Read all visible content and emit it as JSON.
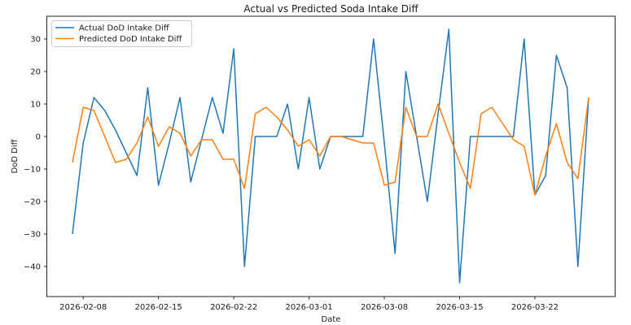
{
  "chart_data": {
    "type": "line",
    "title": "Actual vs Predicted Soda Intake Diff",
    "xlabel": "Date",
    "ylabel": "DoD Diff",
    "grid": false,
    "legend_position": "upper left",
    "background": "#ffffff",
    "ylim": [
      -49,
      37
    ],
    "yticks": [
      30,
      20,
      10,
      0,
      -10,
      -20,
      -30,
      -40
    ],
    "xticks": [
      "2026-02-08",
      "2026-02-15",
      "2026-02-22",
      "2026-03-01",
      "2026-03-08",
      "2026-03-15",
      "2026-03-22"
    ],
    "x": [
      "2026-02-07",
      "2026-02-08",
      "2026-02-09",
      "2026-02-10",
      "2026-02-11",
      "2026-02-12",
      "2026-02-13",
      "2026-02-14",
      "2026-02-15",
      "2026-02-16",
      "2026-02-17",
      "2026-02-18",
      "2026-02-19",
      "2026-02-20",
      "2026-02-21",
      "2026-02-22",
      "2026-02-23",
      "2026-02-24",
      "2026-02-25",
      "2026-02-26",
      "2026-02-27",
      "2026-02-28",
      "2026-03-01",
      "2026-03-02",
      "2026-03-03",
      "2026-03-04",
      "2026-03-05",
      "2026-03-06",
      "2026-03-07",
      "2026-03-08",
      "2026-03-09",
      "2026-03-10",
      "2026-03-11",
      "2026-03-12",
      "2026-03-13",
      "2026-03-14",
      "2026-03-15",
      "2026-03-16",
      "2026-03-17",
      "2026-03-18",
      "2026-03-19",
      "2026-03-20",
      "2026-03-21",
      "2026-03-22",
      "2026-03-23",
      "2026-03-24",
      "2026-03-25",
      "2026-03-26",
      "2026-03-27"
    ],
    "series": [
      {
        "name": "Actual DoD Intake Diff",
        "color": "#1f77b4",
        "values": [
          -30,
          -2,
          12,
          8,
          2,
          -5,
          -12,
          15,
          -15,
          -2,
          12,
          -14,
          -1,
          12,
          1,
          27,
          -40,
          0,
          0,
          0,
          10,
          -10,
          12,
          -10,
          0,
          0,
          0,
          0,
          30,
          -2,
          -36,
          20,
          0,
          -20,
          7,
          33,
          -45,
          0,
          0,
          0,
          0,
          0,
          30,
          -18,
          -12,
          25,
          15,
          -40,
          12
        ]
      },
      {
        "name": "Predicted DoD Intake Diff",
        "color": "#ff7f0e",
        "values": [
          -8,
          9,
          8,
          0,
          -8,
          -7,
          -2,
          6,
          -3,
          3,
          1,
          -6,
          -1,
          -1,
          -7,
          -7,
          -16,
          7,
          9,
          6,
          2,
          -3,
          -1,
          -6,
          0,
          0,
          -1,
          -2,
          -2,
          -15,
          -14,
          9,
          0,
          0,
          10,
          1,
          -8,
          -16,
          7,
          9,
          4,
          -1,
          -3,
          -18,
          -6,
          4,
          -8,
          -13,
          12
        ]
      }
    ]
  }
}
